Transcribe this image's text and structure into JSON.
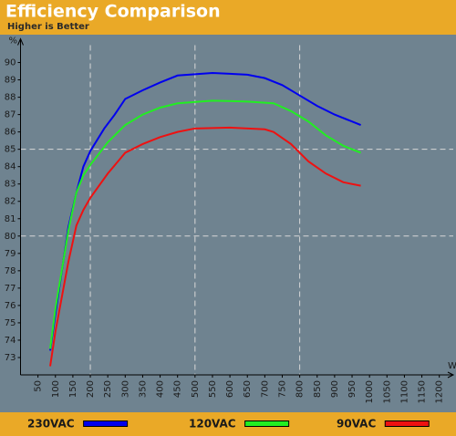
{
  "chart_data": {
    "type": "line",
    "title": "Efficiency Comparison",
    "subtitle": "Higher is Better",
    "y_label": "%",
    "x_label": "W",
    "xlim": [
      0,
      1240
    ],
    "ylim": [
      72,
      91
    ],
    "xticks": [
      50,
      100,
      150,
      200,
      250,
      300,
      350,
      400,
      450,
      500,
      550,
      600,
      650,
      700,
      750,
      800,
      850,
      900,
      950,
      1000,
      1050,
      1100,
      1150,
      1200
    ],
    "yticks": [
      73,
      74,
      75,
      76,
      77,
      78,
      79,
      80,
      81,
      82,
      83,
      84,
      85,
      86,
      87,
      88,
      89,
      90
    ],
    "x_grid": [
      200,
      500,
      800
    ],
    "y_grid": [
      80,
      85
    ],
    "series": [
      {
        "name": "230VAC",
        "color": "#0000ee",
        "x": [
          85,
          100,
          137,
          160,
          180,
          200,
          240,
          270,
          300,
          350,
          400,
          450,
          550,
          650,
          700,
          750,
          800,
          850,
          900,
          975
        ],
        "values": [
          73.4,
          75.5,
          80.5,
          82.5,
          84.0,
          84.9,
          86.2,
          87.0,
          87.9,
          88.4,
          88.85,
          89.25,
          89.4,
          89.3,
          89.1,
          88.7,
          88.1,
          87.5,
          87.0,
          86.4
        ]
      },
      {
        "name": "120VAC",
        "color": "#22ee22",
        "x": [
          85,
          100,
          137,
          160,
          180,
          200,
          250,
          300,
          350,
          400,
          450,
          550,
          650,
          725,
          775,
          825,
          875,
          925,
          975
        ],
        "values": [
          73.5,
          75.8,
          80.3,
          82.5,
          83.5,
          84.1,
          85.4,
          86.4,
          87.0,
          87.4,
          87.65,
          87.8,
          87.75,
          87.65,
          87.2,
          86.6,
          85.8,
          85.2,
          84.8
        ]
      },
      {
        "name": "90VAC",
        "color": "#ee1111",
        "x": [
          85,
          100,
          137,
          160,
          180,
          200,
          250,
          300,
          350,
          400,
          450,
          500,
          600,
          700,
          725,
          775,
          825,
          875,
          925,
          975
        ],
        "values": [
          72.5,
          74.5,
          78.5,
          80.6,
          81.5,
          82.2,
          83.6,
          84.8,
          85.3,
          85.7,
          86.0,
          86.2,
          86.25,
          86.15,
          86.0,
          85.3,
          84.3,
          83.6,
          83.1,
          82.9
        ]
      }
    ]
  }
}
